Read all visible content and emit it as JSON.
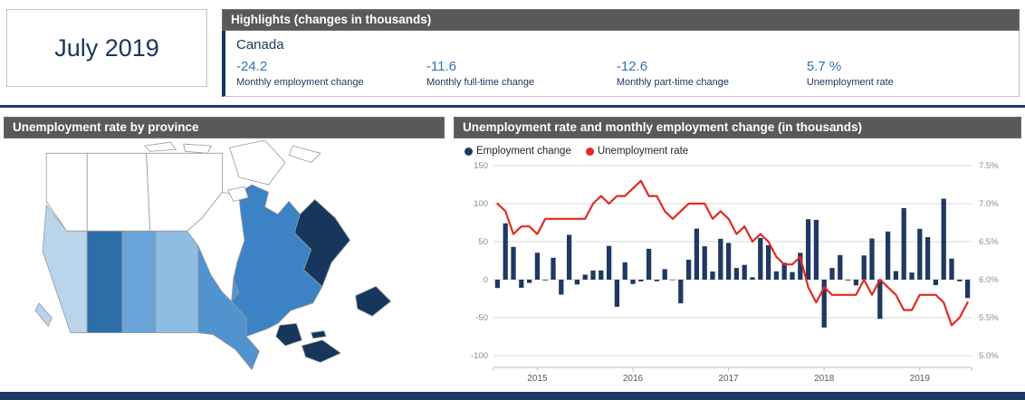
{
  "report": {
    "period": "July 2019"
  },
  "colors": {
    "accent_navy": "#17365d",
    "bar_navy": "#1f3864",
    "value_blue": "#2e75b6",
    "header_gray": "#595959",
    "line_red": "#e02b20",
    "gridline": "#d9d9d9",
    "panel_border": "#c3c3c3"
  },
  "highlights": {
    "title": "Highlights (changes in thousands)",
    "region": "Canada",
    "stats": [
      {
        "value": "-24.2",
        "label": "Monthly employment change"
      },
      {
        "value": "-11.6",
        "label": "Monthly full-time change"
      },
      {
        "value": "-12.6",
        "label": "Monthly part-time change"
      },
      {
        "value": "5.7 %",
        "label": "Unemployment rate"
      }
    ]
  },
  "map_panel": {
    "title": "Unemployment rate by province",
    "territory_color": "#ffffff",
    "water_color": "#ffffff",
    "region_colors": {
      "yukon": "#ffffff",
      "nwt": "#ffffff",
      "nunavut": "#ffffff",
      "bc": "#b9d5ec",
      "ab": "#2d6da8",
      "sk": "#6aa3d8",
      "mb": "#8fbce3",
      "on": "#5193ce",
      "qc": "#3c82c4",
      "nl": "#16365c",
      "nb": "#16365c",
      "ns": "#16365c",
      "pei": "#16365c"
    }
  },
  "chart_panel": {
    "title": "Unemployment rate and monthly employment change (in thousands)",
    "legend": [
      {
        "label": "Employment change",
        "color": "#1f3864"
      },
      {
        "label": "Unemployment rate",
        "color": "#e02b20"
      }
    ]
  },
  "chart_data": {
    "type": "bar",
    "title": "Unemployment rate and monthly employment change (in thousands)",
    "left_axis": {
      "ticks": [
        150,
        100,
        50,
        0,
        -50,
        -100
      ],
      "range": [
        -100,
        150
      ]
    },
    "right_axis": {
      "ticks": [
        "7.5%",
        "7.0%",
        "6.5%",
        "6.0%",
        "5.5%",
        "5.0%"
      ],
      "range": [
        5.0,
        7.5
      ]
    },
    "x_tick_labels": [
      "2015",
      "2016",
      "2017",
      "2018",
      "2019"
    ],
    "grid": true,
    "legend_position": "top",
    "months": [
      "2014-08",
      "2014-09",
      "2014-10",
      "2014-11",
      "2014-12",
      "2015-01",
      "2015-02",
      "2015-03",
      "2015-04",
      "2015-05",
      "2015-06",
      "2015-07",
      "2015-08",
      "2015-09",
      "2015-10",
      "2015-11",
      "2015-12",
      "2016-01",
      "2016-02",
      "2016-03",
      "2016-04",
      "2016-05",
      "2016-06",
      "2016-07",
      "2016-08",
      "2016-09",
      "2016-10",
      "2016-11",
      "2016-12",
      "2017-01",
      "2017-02",
      "2017-03",
      "2017-04",
      "2017-05",
      "2017-06",
      "2017-07",
      "2017-08",
      "2017-09",
      "2017-10",
      "2017-11",
      "2017-12",
      "2018-01",
      "2018-02",
      "2018-03",
      "2018-04",
      "2018-05",
      "2018-06",
      "2018-07",
      "2018-08",
      "2018-09",
      "2018-10",
      "2018-11",
      "2018-12",
      "2019-01",
      "2019-02",
      "2019-03",
      "2019-04",
      "2019-05",
      "2019-06",
      "2019-07"
    ],
    "series": [
      {
        "name": "Employment change",
        "type": "bar",
        "color": "#1f3864",
        "axis": "left",
        "values": [
          -11.0,
          74.1,
          43.1,
          -10.7,
          -4.3,
          35.4,
          -1.0,
          28.7,
          -19.7,
          58.9,
          -6.4,
          6.6,
          12.0,
          12.1,
          44.4,
          -35.7,
          22.8,
          -5.7,
          -2.3,
          40.6,
          -2.1,
          13.8,
          -0.7,
          -31.2,
          26.2,
          67.2,
          43.9,
          10.7,
          53.7,
          48.3,
          15.3,
          19.4,
          3.2,
          54.9,
          45.3,
          10.9,
          22.2,
          10.0,
          35.3,
          79.5,
          78.6,
          -63.0,
          15.4,
          32.3,
          -1.1,
          -7.5,
          31.8,
          54.1,
          -51.6,
          63.3,
          11.2,
          94.1,
          9.3,
          66.8,
          55.9,
          -7.2,
          106.5,
          27.7,
          -2.2,
          -24.2
        ]
      },
      {
        "name": "Unemployment rate",
        "type": "line",
        "color": "#e02b20",
        "axis": "right",
        "values": [
          7.0,
          6.9,
          6.6,
          6.7,
          6.7,
          6.6,
          6.8,
          6.8,
          6.8,
          6.8,
          6.8,
          6.8,
          7.0,
          7.1,
          7.0,
          7.1,
          7.1,
          7.2,
          7.3,
          7.1,
          7.1,
          6.9,
          6.8,
          6.9,
          7.0,
          7.0,
          7.0,
          6.8,
          6.9,
          6.8,
          6.6,
          6.7,
          6.5,
          6.6,
          6.5,
          6.3,
          6.2,
          6.2,
          6.3,
          5.9,
          5.7,
          5.9,
          5.8,
          5.8,
          5.8,
          5.8,
          6.0,
          5.8,
          6.0,
          5.9,
          5.8,
          5.6,
          5.6,
          5.8,
          5.8,
          5.8,
          5.7,
          5.4,
          5.5,
          5.7
        ]
      }
    ]
  }
}
